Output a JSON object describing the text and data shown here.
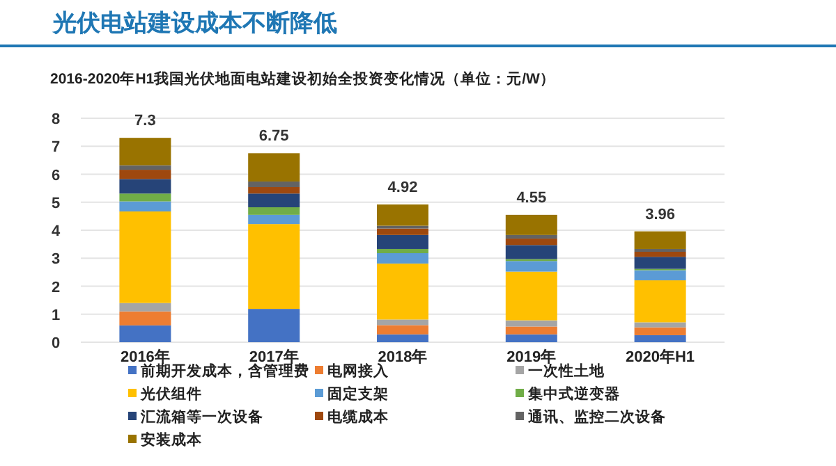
{
  "chart_data": {
    "type": "bar",
    "title": "光伏电站建设成本不断降低",
    "subtitle": "2016-2020年H1我国光伏地面电站建设初始全投资变化情况（单位：元/W）",
    "categories": [
      "2016年",
      "2017年",
      "2018年",
      "2019年",
      "2020年H1"
    ],
    "stacked": true,
    "ylim": [
      0,
      8
    ],
    "yticks": [
      0,
      1,
      2,
      3,
      4,
      5,
      6,
      7,
      8
    ],
    "grid": "y",
    "legend": "bottom",
    "totals": [
      "7.3",
      "6.75",
      "4.92",
      "4.55",
      "3.96"
    ],
    "series": [
      {
        "name": "前期开发成本，含管理费",
        "color": "#4472c4",
        "values": [
          0.6,
          1.19,
          0.28,
          0.28,
          0.25
        ]
      },
      {
        "name": "电网接入",
        "color": "#ed7d31",
        "values": [
          0.5,
          0,
          0.33,
          0.28,
          0.28
        ]
      },
      {
        "name": "一次性土地",
        "color": "#a5a5a5",
        "values": [
          0.3,
          0,
          0.2,
          0.22,
          0.18
        ]
      },
      {
        "name": "光伏组件",
        "color": "#ffc000",
        "values": [
          3.27,
          3.03,
          2.0,
          1.74,
          1.5
        ]
      },
      {
        "name": "固定支架",
        "color": "#5b9bd5",
        "values": [
          0.36,
          0.33,
          0.37,
          0.38,
          0.36
        ]
      },
      {
        "name": "集中式逆变器",
        "color": "#70ad47",
        "values": [
          0.28,
          0.27,
          0.15,
          0.07,
          0.05
        ]
      },
      {
        "name": "汇流箱等一次设备",
        "color": "#264478",
        "values": [
          0.52,
          0.49,
          0.5,
          0.5,
          0.43
        ]
      },
      {
        "name": "电缆成本",
        "color": "#9e480e",
        "values": [
          0.33,
          0.23,
          0.23,
          0.23,
          0.18
        ]
      },
      {
        "name": "通讯、监控二次设备",
        "color": "#636363",
        "values": [
          0.16,
          0.2,
          0.1,
          0.13,
          0.1
        ]
      },
      {
        "name": "安装成本",
        "color": "#997300",
        "values": [
          0.98,
          1.01,
          0.76,
          0.72,
          0.63
        ]
      }
    ]
  }
}
